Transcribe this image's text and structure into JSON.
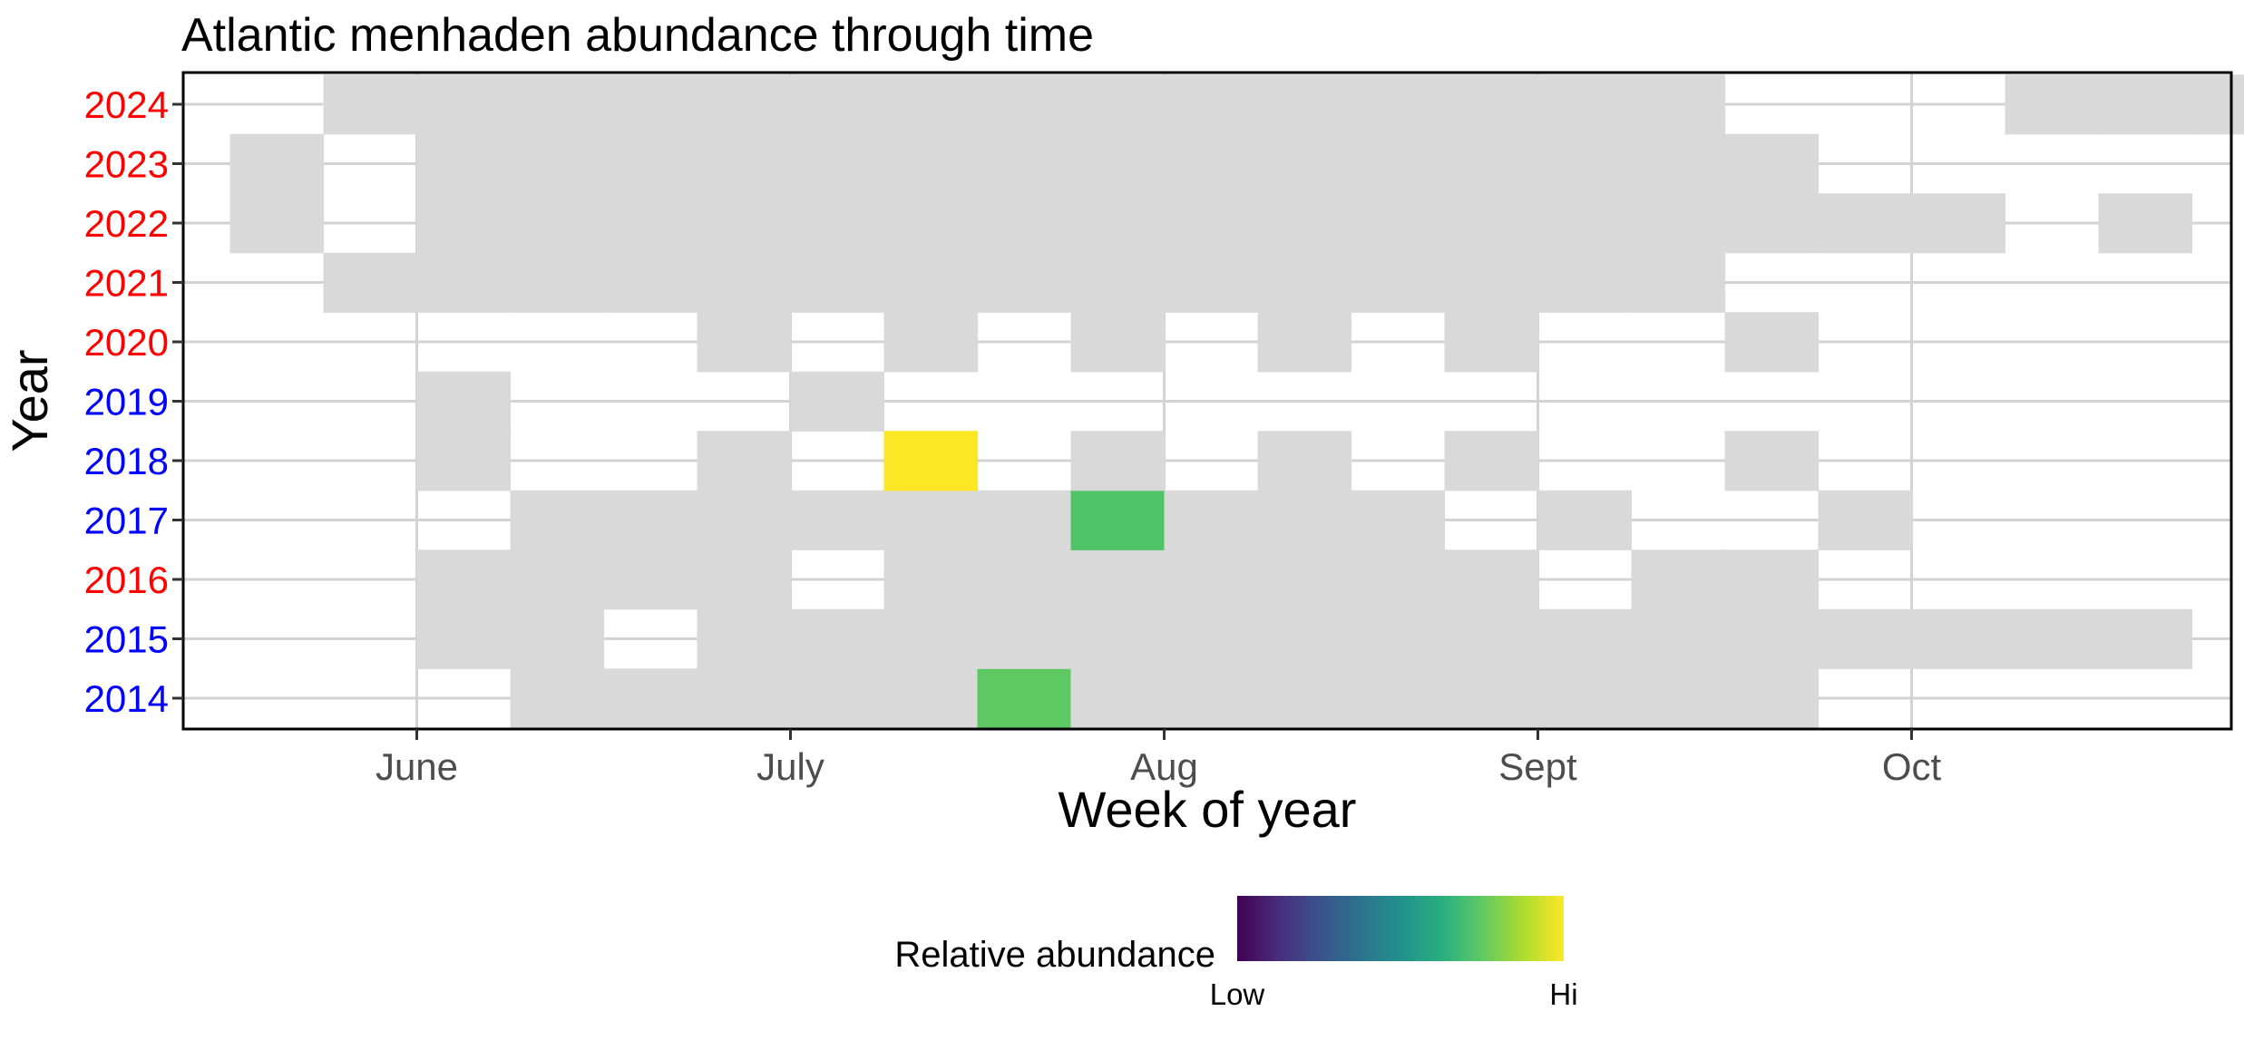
{
  "chart_data": {
    "type": "heatmap",
    "title": "Atlantic menhaden abundance through time",
    "xlabel": "Week of year",
    "ylabel": "Year",
    "x_range_weeks": [
      20,
      42
    ],
    "x_ticks": [
      {
        "label": "June",
        "week": 22.5
      },
      {
        "label": "July",
        "week": 26.5
      },
      {
        "label": "Aug",
        "week": 30.5
      },
      {
        "label": "Sept",
        "week": 34.5
      },
      {
        "label": "Oct",
        "week": 38.5
      }
    ],
    "years": [
      {
        "label": "2014",
        "color": "#0000ff"
      },
      {
        "label": "2015",
        "color": "#0000ff"
      },
      {
        "label": "2016",
        "color": "#ff0000"
      },
      {
        "label": "2017",
        "color": "#0000ff"
      },
      {
        "label": "2018",
        "color": "#0000ff"
      },
      {
        "label": "2019",
        "color": "#0000ff"
      },
      {
        "label": "2020",
        "color": "#ff0000"
      },
      {
        "label": "2021",
        "color": "#ff0000"
      },
      {
        "label": "2022",
        "color": "#ff0000"
      },
      {
        "label": "2023",
        "color": "#ff0000"
      },
      {
        "label": "2024",
        "color": "#ff0000"
      }
    ],
    "sampled_no_catch_color": "#d9d9d9",
    "cells": {
      "2024": {
        "sampled_weeks": [
          22,
          23,
          24,
          25,
          26,
          27,
          28,
          29,
          30,
          31,
          32,
          33,
          34,
          35,
          36,
          40,
          41,
          42
        ],
        "abundance": {}
      },
      "2023": {
        "sampled_weeks": [
          21,
          23,
          24,
          25,
          26,
          27,
          28,
          29,
          30,
          31,
          32,
          33,
          34,
          35,
          36,
          37
        ],
        "abundance": {}
      },
      "2022": {
        "sampled_weeks": [
          21,
          23,
          24,
          25,
          26,
          27,
          28,
          29,
          30,
          31,
          32,
          33,
          34,
          35,
          36,
          37,
          38,
          39,
          41
        ],
        "abundance": {}
      },
      "2021": {
        "sampled_weeks": [
          22,
          23,
          24,
          25,
          26,
          27,
          28,
          29,
          30,
          31,
          32,
          33,
          34,
          35,
          36
        ],
        "abundance": {}
      },
      "2020": {
        "sampled_weeks": [
          26,
          28,
          30,
          32,
          34,
          37
        ],
        "abundance": {}
      },
      "2019": {
        "sampled_weeks": [
          23,
          27
        ],
        "abundance": {}
      },
      "2018": {
        "sampled_weeks": [
          23,
          26,
          28,
          30,
          32,
          34,
          37
        ],
        "abundance": {
          "28": 1.0
        }
      },
      "2017": {
        "sampled_weeks": [
          24,
          25,
          26,
          27,
          28,
          29,
          30,
          31,
          32,
          33,
          35,
          38
        ],
        "abundance": {
          "30": 0.72
        }
      },
      "2016": {
        "sampled_weeks": [
          23,
          24,
          25,
          26,
          28,
          29,
          30,
          31,
          32,
          33,
          34,
          36,
          37
        ],
        "abundance": {}
      },
      "2015": {
        "sampled_weeks": [
          23,
          24,
          26,
          27,
          28,
          29,
          30,
          31,
          32,
          33,
          34,
          35,
          36,
          37,
          38,
          39,
          40,
          41
        ],
        "abundance": {}
      },
      "2014": {
        "sampled_weeks": [
          24,
          25,
          26,
          27,
          28,
          29,
          30,
          31,
          32,
          33,
          34,
          35,
          36,
          37
        ],
        "abundance": {
          "29": 0.75
        }
      }
    },
    "legend": {
      "title": "Relative abundance",
      "low_label": "Low",
      "high_label": "Hi",
      "placement": "bottom",
      "colormap": "viridis"
    }
  }
}
